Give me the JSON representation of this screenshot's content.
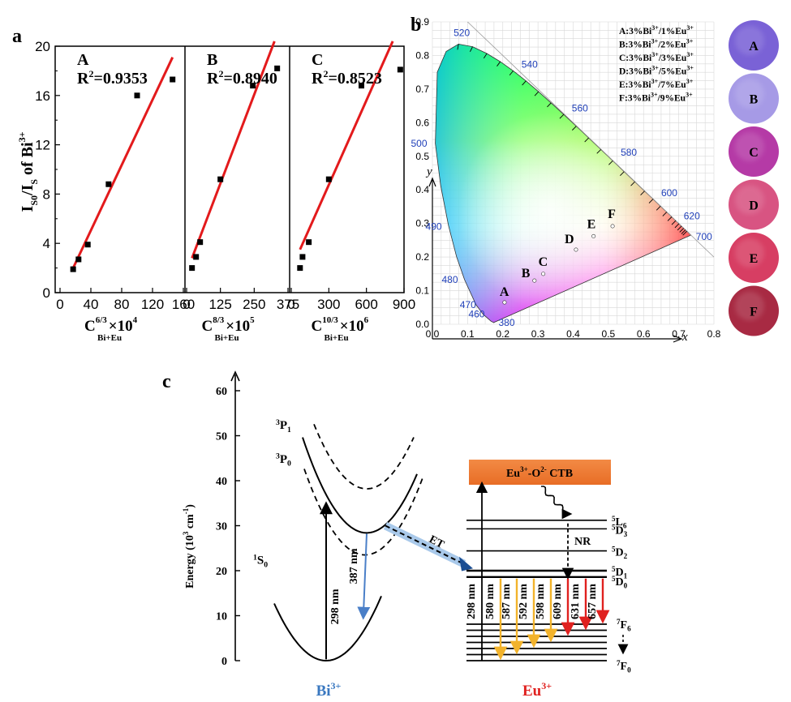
{
  "panel_labels": {
    "a": "a",
    "b": "b",
    "c": "c"
  },
  "chart_data": [
    {
      "type": "scatter",
      "panel": "a",
      "ylabel_main": "I",
      "ylabel_sub1": "S0",
      "ylabel_mid": "/I",
      "ylabel_sub2": "S",
      "ylabel_end": " of Bi",
      "ylabel_sup": "3+",
      "ylim": [
        0,
        20
      ],
      "yticks": [
        "0",
        "4",
        "8",
        "12",
        "16",
        "20"
      ],
      "subplots": [
        {
          "letter": "A",
          "r2_label": "R",
          "r2_sup": "2",
          "r2_value": "=0.9353",
          "xlim": [
            0,
            160
          ],
          "xticks": [
            "0",
            "40",
            "80",
            "120",
            "160"
          ],
          "xlabel_main": "C",
          "xlabel_sup": "6/3",
          "xlabel_sub": "Bi+Eu",
          "xlabel_tail": "×10",
          "xlabel_tail_sup": "4",
          "points": [
            [
              17,
              1.9
            ],
            [
              24,
              2.7
            ],
            [
              36,
              3.9
            ],
            [
              63,
              8.8
            ],
            [
              100,
              16.0
            ],
            [
              146,
              17.3
            ]
          ],
          "fit": [
            [
              17,
              2.0
            ],
            [
              146,
              19.1
            ]
          ]
        },
        {
          "letter": "B",
          "r2_label": "R",
          "r2_sup": "2",
          "r2_value": "=0.8940",
          "xlim": [
            0,
            375
          ],
          "xticks": [
            "0",
            "125",
            "250",
            "375"
          ],
          "xlabel_main": "C",
          "xlabel_sup": "8/3",
          "xlabel_sub": "Bi+Eu",
          "xlabel_tail": "×10",
          "xlabel_tail_sup": "5",
          "points": [
            [
              20,
              2.0
            ],
            [
              35,
              2.9
            ],
            [
              50,
              4.1
            ],
            [
              125,
              9.2
            ],
            [
              245,
              16.8
            ],
            [
              335,
              18.2
            ]
          ],
          "fit": [
            [
              20,
              2.8
            ],
            [
              325,
              20.4
            ]
          ]
        },
        {
          "letter": "C",
          "r2_label": "R",
          "r2_sup": "2",
          "r2_value": "=0.8523",
          "xlim": [
            0,
            900
          ],
          "xticks": [
            "0",
            "300",
            "600",
            "900"
          ],
          "xlabel_main": "C",
          "xlabel_sup": "10/3",
          "xlabel_sub": "Bi+Eu",
          "xlabel_tail": "×10",
          "xlabel_tail_sup": "6",
          "points": [
            [
              70,
              2.0
            ],
            [
              90,
              2.9
            ],
            [
              140,
              4.1
            ],
            [
              300,
              9.2
            ],
            [
              560,
              16.8
            ],
            [
              870,
              18.1
            ]
          ],
          "fit": [
            [
              70,
              3.5
            ],
            [
              810,
              20.4
            ]
          ]
        }
      ]
    },
    {
      "type": "scatter",
      "panel": "b",
      "subtype": "CIE 1931 chromaticity diagram",
      "xlabel": "x",
      "ylabel": "y",
      "xlim": [
        0.0,
        0.8
      ],
      "ylim": [
        0.0,
        0.9
      ],
      "xticks": [
        "0.0",
        "0.1",
        "0.2",
        "0.3",
        "0.4",
        "0.5",
        "0.6",
        "0.7",
        "0.8"
      ],
      "yticks": [
        "0.0",
        "0.1",
        "0.2",
        "0.3",
        "0.4",
        "0.5",
        "0.6",
        "0.7",
        "0.8",
        "0.9"
      ],
      "wavelength_labels": [
        {
          "label": "380",
          "x": 0.174,
          "y": 0.005
        },
        {
          "label": "460",
          "x": 0.144,
          "y": 0.03
        },
        {
          "label": "470",
          "x": 0.124,
          "y": 0.058
        },
        {
          "label": "480",
          "x": 0.091,
          "y": 0.133
        },
        {
          "label": "490",
          "x": 0.045,
          "y": 0.295
        },
        {
          "label": "500",
          "x": 0.008,
          "y": 0.538
        },
        {
          "label": "520",
          "x": 0.074,
          "y": 0.834
        },
        {
          "label": "540",
          "x": 0.23,
          "y": 0.754
        },
        {
          "label": "560",
          "x": 0.373,
          "y": 0.624
        },
        {
          "label": "580",
          "x": 0.512,
          "y": 0.487
        },
        {
          "label": "600",
          "x": 0.627,
          "y": 0.372
        },
        {
          "label": "620",
          "x": 0.691,
          "y": 0.308
        },
        {
          "label": "700",
          "x": 0.735,
          "y": 0.265
        }
      ],
      "points": [
        {
          "label": "A",
          "x": 0.205,
          "y": 0.065
        },
        {
          "label": "B",
          "x": 0.29,
          "y": 0.13
        },
        {
          "label": "C",
          "x": 0.315,
          "y": 0.15
        },
        {
          "label": "D",
          "x": 0.408,
          "y": 0.222
        },
        {
          "label": "E",
          "x": 0.458,
          "y": 0.262
        },
        {
          "label": "F",
          "x": 0.512,
          "y": 0.292
        }
      ],
      "legend": [
        {
          "letter": "A",
          "text": ":3%Bi",
          "s1": "3+",
          "mid": "/1%Eu",
          "s2": "3+"
        },
        {
          "letter": "B",
          "text": ":3%Bi",
          "s1": "3+",
          "mid": "/2%Eu",
          "s2": "3+"
        },
        {
          "letter": "C",
          "text": ":3%Bi",
          "s1": "3+",
          "mid": "/3%Eu",
          "s2": "3+"
        },
        {
          "letter": "D",
          "text": ":3%Bi",
          "s1": "3+",
          "mid": "/5%Eu",
          "s2": "3+"
        },
        {
          "letter": "E",
          "text": ":3%Bi",
          "s1": "3+",
          "mid": "/7%Eu",
          "s2": "3+"
        },
        {
          "letter": "F",
          "text": ":3%Bi",
          "s1": "3+",
          "mid": "/9%Eu",
          "s2": "3+"
        }
      ],
      "photos": [
        {
          "label": "A",
          "color": "#7a62d6"
        },
        {
          "label": "B",
          "color": "#a69ae6"
        },
        {
          "label": "C",
          "color": "#b53aa6"
        },
        {
          "label": "D",
          "color": "#d85482"
        },
        {
          "label": "E",
          "color": "#d73e63"
        },
        {
          "label": "F",
          "color": "#a82a43"
        }
      ]
    },
    {
      "type": "diagram",
      "panel": "c",
      "ylabel": "Energy (10",
      "ylabel_sup": "3",
      "ylabel_tail": " cm",
      "ylabel_sup2": "-1",
      "ylabel_end": ")",
      "ylim": [
        0,
        60
      ],
      "yticks": [
        "0",
        "10",
        "20",
        "30",
        "40",
        "50",
        "60"
      ],
      "bi_states": [
        {
          "pre": "3",
          "name": "P",
          "sub": "1"
        },
        {
          "pre": "3",
          "name": "P",
          "sub": "0"
        },
        {
          "pre": "1",
          "name": "S",
          "sub": "0"
        }
      ],
      "bi_transitions": [
        {
          "label": "298 nm",
          "color": "#000000"
        },
        {
          "label": "387 nm",
          "color": "#4a7fc8"
        }
      ],
      "et_label": "ET",
      "ctb": {
        "text": "Eu",
        "sup": "3+",
        "mid": "-O",
        "sup2": "2-",
        "tail": " CTB",
        "color": "#ef7f3a"
      },
      "nr_label": "NR",
      "eu_levels": [
        {
          "pre": "5",
          "name": "L",
          "sub": "6",
          "energy": 31.2
        },
        {
          "pre": "5",
          "name": "D",
          "sub": "3",
          "energy": 29.3
        },
        {
          "pre": "5",
          "name": "D",
          "sub": "2",
          "energy": 24.4
        },
        {
          "pre": "5",
          "name": "D",
          "sub": "1",
          "energy": 20.0
        },
        {
          "pre": "5",
          "name": "D",
          "sub": "0",
          "energy": 18.6
        }
      ],
      "eu_ground_labels": [
        {
          "pre": "7",
          "name": "F",
          "sub": "6"
        },
        {
          "pre": "7",
          "name": "F",
          "sub": "0"
        }
      ],
      "eu_emissions": [
        {
          "label": "298 nm",
          "color": "#000000"
        },
        {
          "label": "580 nm",
          "color": "#f2b32c"
        },
        {
          "label": "587 nm",
          "color": "#f2b32c"
        },
        {
          "label": "592 nm",
          "color": "#f2b32c"
        },
        {
          "label": "598 nm",
          "color": "#f2b32c"
        },
        {
          "label": "609 nm",
          "color": "#e0211f"
        },
        {
          "label": "631 nm",
          "color": "#e0211f"
        },
        {
          "label": "657 nm",
          "color": "#e0211f"
        }
      ],
      "ion_labels": [
        {
          "text": "Bi",
          "sup": "3+",
          "color": "#3a78c0"
        },
        {
          "text": "Eu",
          "sup": "3+",
          "color": "#e0211f"
        }
      ]
    }
  ]
}
